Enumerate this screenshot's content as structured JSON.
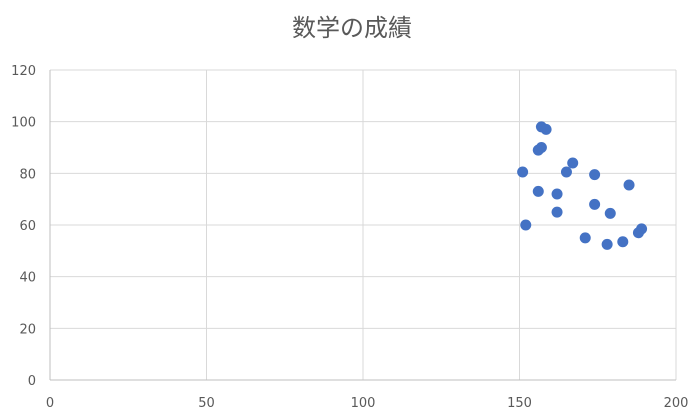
{
  "chart_data": {
    "type": "scatter",
    "title": "数学の成績",
    "xlabel": "",
    "ylabel": "",
    "xlim": [
      0,
      200
    ],
    "ylim": [
      0,
      120
    ],
    "xticks": [
      0,
      50,
      100,
      150,
      200
    ],
    "yticks": [
      0,
      20,
      40,
      60,
      80,
      100,
      120
    ],
    "grid": true,
    "legend": "none",
    "color": "#4472C4",
    "series": [
      {
        "points": [
          {
            "x": 157,
            "y": 98
          },
          {
            "x": 158.5,
            "y": 97
          },
          {
            "x": 156,
            "y": 89
          },
          {
            "x": 157,
            "y": 90
          },
          {
            "x": 167,
            "y": 84
          },
          {
            "x": 151,
            "y": 80.5
          },
          {
            "x": 165,
            "y": 80.5
          },
          {
            "x": 174,
            "y": 79.5
          },
          {
            "x": 185,
            "y": 75.5
          },
          {
            "x": 156,
            "y": 73
          },
          {
            "x": 162,
            "y": 72
          },
          {
            "x": 174,
            "y": 68
          },
          {
            "x": 162,
            "y": 65
          },
          {
            "x": 179,
            "y": 64.5
          },
          {
            "x": 152,
            "y": 60
          },
          {
            "x": 189,
            "y": 58.5
          },
          {
            "x": 188,
            "y": 57
          },
          {
            "x": 171,
            "y": 55
          },
          {
            "x": 183,
            "y": 53.5
          },
          {
            "x": 178,
            "y": 52.5
          }
        ]
      }
    ]
  }
}
